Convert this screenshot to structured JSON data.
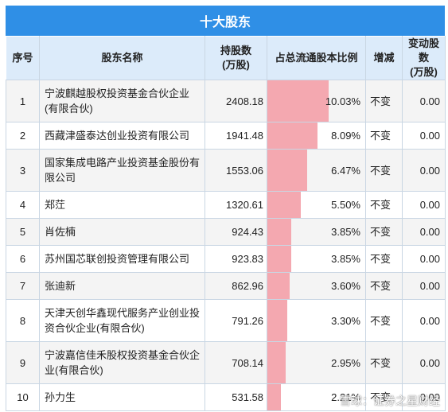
{
  "title": "十大股东",
  "headers": {
    "rank": "序号",
    "name": "股东名称",
    "holding": "持股数\n(万股)",
    "ratio": "占总流通股本比例",
    "change": "增减",
    "change_amount": "变动股数\n(万股)"
  },
  "rows": [
    {
      "rank": "1",
      "name": "宁波麒越股权投资基金合伙企业(有限合伙)",
      "holding": "2408.18",
      "ratio": "10.03%",
      "ratio_value": 10.03,
      "change": "不变",
      "change_amount": "0.00"
    },
    {
      "rank": "2",
      "name": "西藏津盛泰达创业投资有限公司",
      "holding": "1941.48",
      "ratio": "8.09%",
      "ratio_value": 8.09,
      "change": "不变",
      "change_amount": "0.00"
    },
    {
      "rank": "3",
      "name": "国家集成电路产业投资基金股份有限公司",
      "holding": "1553.06",
      "ratio": "6.47%",
      "ratio_value": 6.47,
      "change": "不变",
      "change_amount": "0.00"
    },
    {
      "rank": "4",
      "name": "郑茳",
      "holding": "1320.61",
      "ratio": "5.50%",
      "ratio_value": 5.5,
      "change": "不变",
      "change_amount": "0.00"
    },
    {
      "rank": "5",
      "name": "肖佐楠",
      "holding": "924.43",
      "ratio": "3.85%",
      "ratio_value": 3.85,
      "change": "不变",
      "change_amount": "0.00"
    },
    {
      "rank": "6",
      "name": "苏州国芯联创投资管理有限公司",
      "holding": "923.83",
      "ratio": "3.85%",
      "ratio_value": 3.85,
      "change": "不变",
      "change_amount": "0.00"
    },
    {
      "rank": "7",
      "name": "张迪新",
      "holding": "862.96",
      "ratio": "3.60%",
      "ratio_value": 3.6,
      "change": "不变",
      "change_amount": "0.00"
    },
    {
      "rank": "8",
      "name": "天津天创华鑫现代服务产业创业投资合伙企业(有限合伙)",
      "holding": "791.26",
      "ratio": "3.30%",
      "ratio_value": 3.3,
      "change": "不变",
      "change_amount": "0.00"
    },
    {
      "rank": "9",
      "name": "宁波嘉信佳禾股权投资基金合伙企业(有限合伙)",
      "holding": "708.14",
      "ratio": "2.95%",
      "ratio_value": 2.95,
      "change": "不变",
      "change_amount": "0.00"
    },
    {
      "rank": "10",
      "name": "孙力生",
      "holding": "531.58",
      "ratio": "2.21%",
      "ratio_value": 2.21,
      "change": "不变",
      "change_amount": "0.00"
    }
  ],
  "ratio_scale_max": 10.03,
  "colors": {
    "header_bar": "#2f8fe6",
    "header_row": "#dcebfa",
    "ratio_bar": "#f4a8b0"
  },
  "watermark": "证券之星",
  "brand": "雪球：证券之星财经"
}
